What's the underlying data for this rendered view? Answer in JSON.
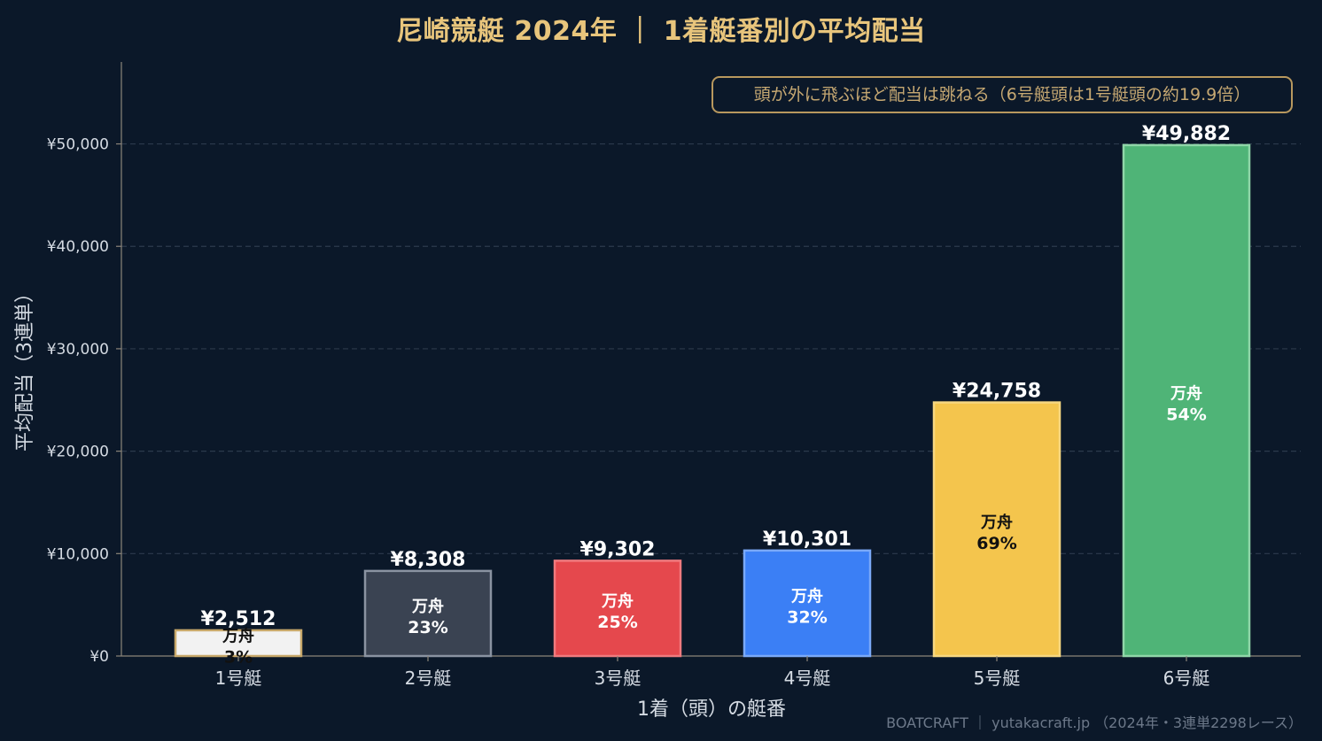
{
  "chart_data": {
    "type": "bar",
    "title": "尼崎競艇 2024年 ｜ 1着艇番別の平均配当",
    "xlabel": "1着（頭）の艇番",
    "ylabel": "平均配当（3連単）",
    "categories": [
      "1号艇",
      "2号艇",
      "3号艇",
      "4号艇",
      "5号艇",
      "6号艇"
    ],
    "values": [
      2512,
      8308,
      9302,
      10301,
      24758,
      49882
    ],
    "value_labels": [
      "¥2,512",
      "¥8,308",
      "¥9,302",
      "¥10,301",
      "¥24,758",
      "¥49,882"
    ],
    "inner_label_title": "万舟",
    "inner_labels": [
      "3%",
      "23%",
      "25%",
      "32%",
      "69%",
      "54%"
    ],
    "bar_colors": [
      "#f2f2f2",
      "#3a4352",
      "#e5484d",
      "#3b7ff5",
      "#f4c54d",
      "#4fb477"
    ],
    "bar_edge_colors": [
      "#c8a86a",
      "#8a93a1",
      "#f07a7e",
      "#7aa9f8",
      "#f7d780",
      "#8fd6a8"
    ],
    "inner_text_colors": [
      "#111111",
      "#ffffff",
      "#ffffff",
      "#ffffff",
      "#111111",
      "#ffffff"
    ],
    "ylim": [
      0,
      58000
    ],
    "yticks": [
      0,
      10000,
      20000,
      30000,
      40000,
      50000
    ],
    "ytick_labels": [
      "¥0",
      "¥10,000",
      "¥20,000",
      "¥30,000",
      "¥40,000",
      "¥50,000"
    ],
    "grid": true,
    "annotation": "頭が外に飛ぶほど配当は跳ねる（6号艇頭は1号艇頭の約19.9倍）"
  },
  "footer": "BOATCRAFT ｜ yutakacraft.jp （2024年・3連単2298レース）",
  "colors": {
    "background": "#0b1829",
    "title": "#e8c57c",
    "grid": "#2c3a4c",
    "axis": "#8c857a",
    "text": "#d5dbe3"
  }
}
